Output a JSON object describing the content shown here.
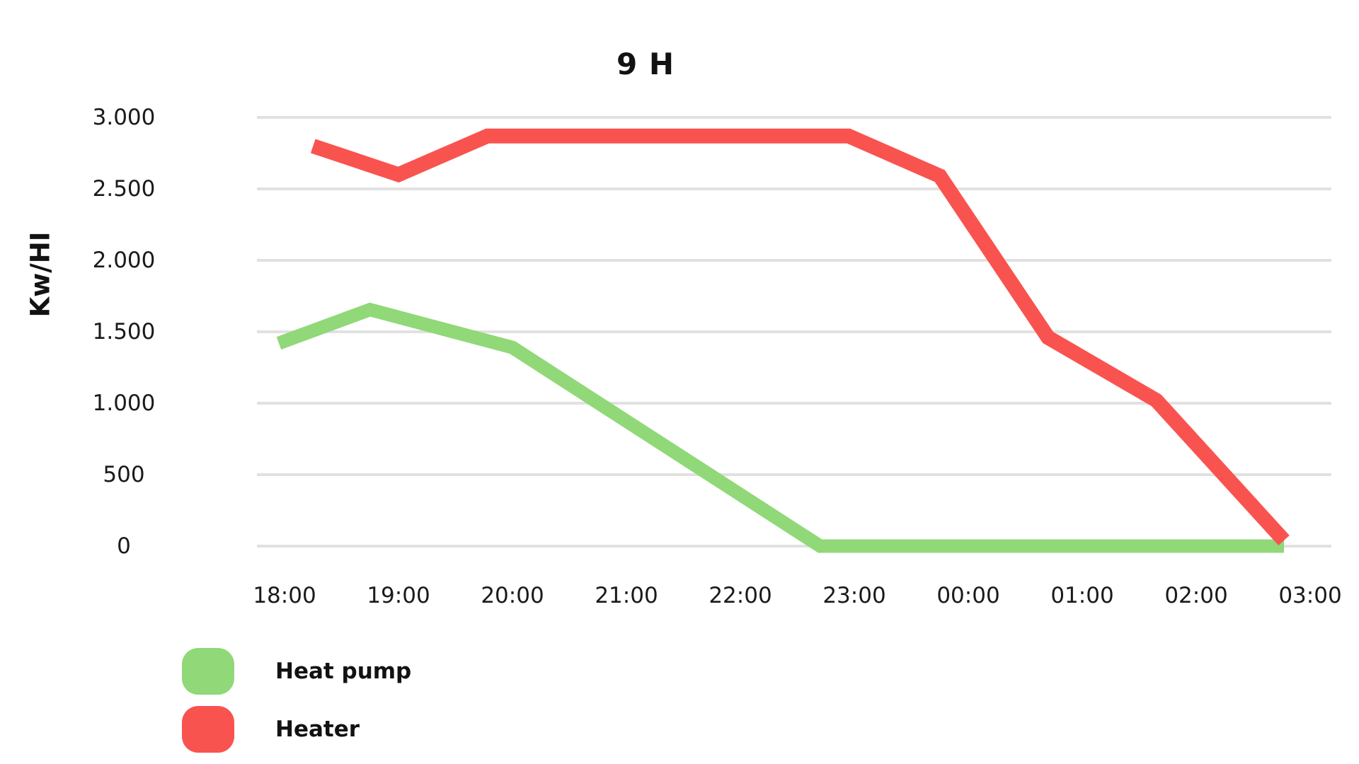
{
  "page": {
    "background": "#ffffff",
    "text_color": "#1a1a1a"
  },
  "chart_data": {
    "type": "line",
    "title": "9 H",
    "xlabel": "",
    "ylabel": "Kw/HI",
    "categories": [
      "18:00",
      "19:00",
      "20:00",
      "21:00",
      "22:00",
      "23:00",
      "00:00",
      "01:00",
      "02:00",
      "03:00"
    ],
    "ytick_labels": [
      "3.000",
      "2.500",
      "2.000",
      "1.500",
      "1.000",
      "500",
      "0"
    ],
    "ylim": [
      0,
      3000
    ],
    "grid": "horizontal-only",
    "gridline_color": "#e1e1e1",
    "legend_position": "bottom-left",
    "series": [
      {
        "name": "Heat pump",
        "color": "#90D878",
        "values": [
          1400,
          1600,
          1400,
          900,
          400,
          0,
          0,
          0,
          0,
          0
        ],
        "vertices_hour_value": [
          [
            -0.05,
            1420
          ],
          [
            0.75,
            1655
          ],
          [
            2.0,
            1390
          ],
          [
            4.7,
            0
          ],
          [
            8.77,
            0
          ]
        ]
      },
      {
        "name": "Heater",
        "color": "#F95350",
        "values": [
          2800,
          2600,
          2850,
          2850,
          2850,
          2850,
          2600,
          1450,
          1050,
          0
        ],
        "vertices_hour_value": [
          [
            0.25,
            2800
          ],
          [
            1.0,
            2600
          ],
          [
            1.78,
            2870
          ],
          [
            4.95,
            2870
          ],
          [
            5.75,
            2590
          ],
          [
            6.7,
            1460
          ],
          [
            7.65,
            1020
          ],
          [
            8.77,
            40
          ]
        ]
      }
    ]
  }
}
